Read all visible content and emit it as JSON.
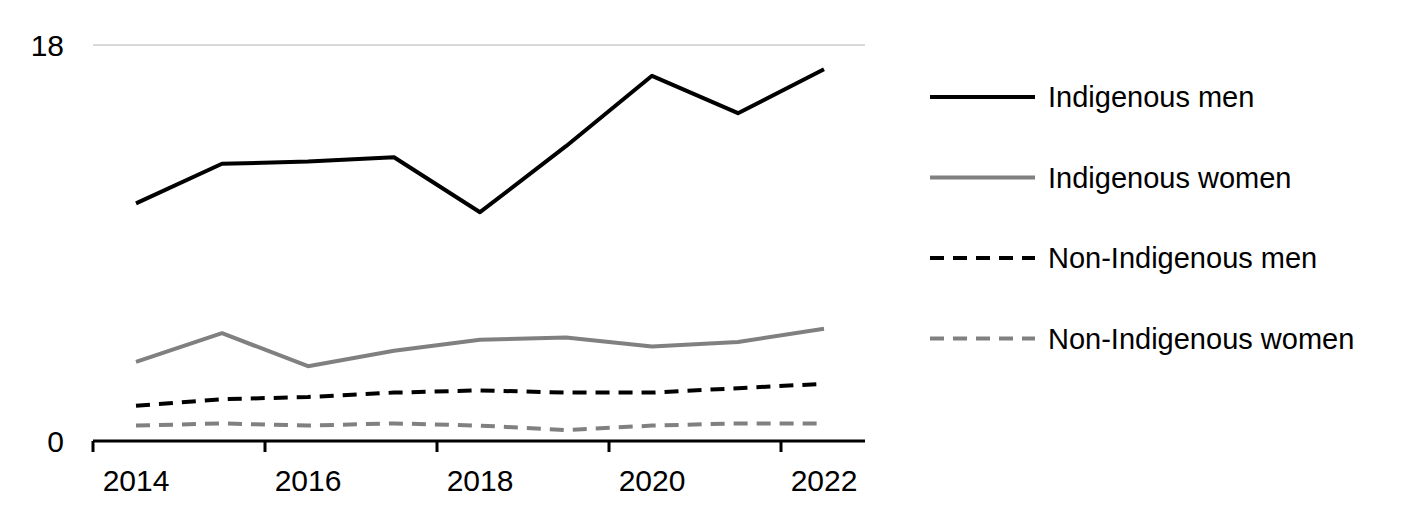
{
  "chart_data": {
    "type": "line",
    "categories": [
      "2014",
      null,
      "2016",
      null,
      "2018",
      null,
      "2020",
      null,
      "2022"
    ],
    "series": [
      {
        "name": "Indigenous men",
        "color": "#000000",
        "line_style": "solid",
        "values": [
          10.8,
          12.6,
          12.7,
          12.9,
          10.4,
          13.4,
          16.6,
          14.9,
          16.9
        ]
      },
      {
        "name": "Indigenous women",
        "color": "#808080",
        "line_style": "solid",
        "values": [
          3.6,
          4.9,
          3.4,
          4.1,
          4.6,
          4.7,
          4.3,
          4.5,
          5.1
        ]
      },
      {
        "name": "Non-Indigenous men",
        "color": "#000000",
        "line_style": "dashed",
        "values": [
          1.6,
          1.9,
          2.0,
          2.2,
          2.3,
          2.2,
          2.2,
          2.4,
          2.6
        ]
      },
      {
        "name": "Non-Indigenous women",
        "color": "#808080",
        "line_style": "dashed",
        "values": [
          0.7,
          0.8,
          0.7,
          0.8,
          0.7,
          0.5,
          0.7,
          0.8,
          0.8
        ]
      }
    ],
    "ylim": [
      0,
      18
    ],
    "yticks": [
      0,
      18
    ],
    "grid": true,
    "legend": "right"
  }
}
